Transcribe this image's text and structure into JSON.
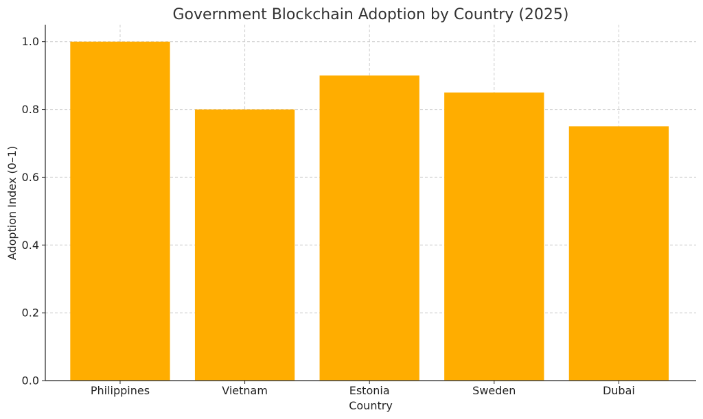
{
  "chart_data": {
    "type": "bar",
    "title": "Government Blockchain Adoption by Country (2025)",
    "xlabel": "Country",
    "ylabel": "Adoption Index (0–1)",
    "categories": [
      "Philippines",
      "Vietnam",
      "Estonia",
      "Sweden",
      "Dubai"
    ],
    "values": [
      1.0,
      0.8,
      0.9,
      0.85,
      0.75
    ],
    "ylim": [
      0,
      1.05
    ],
    "yticks": [
      "0.0",
      "0.2",
      "0.4",
      "0.6",
      "0.8",
      "1.0"
    ],
    "grid": true,
    "bar_color": "#ffad00"
  }
}
